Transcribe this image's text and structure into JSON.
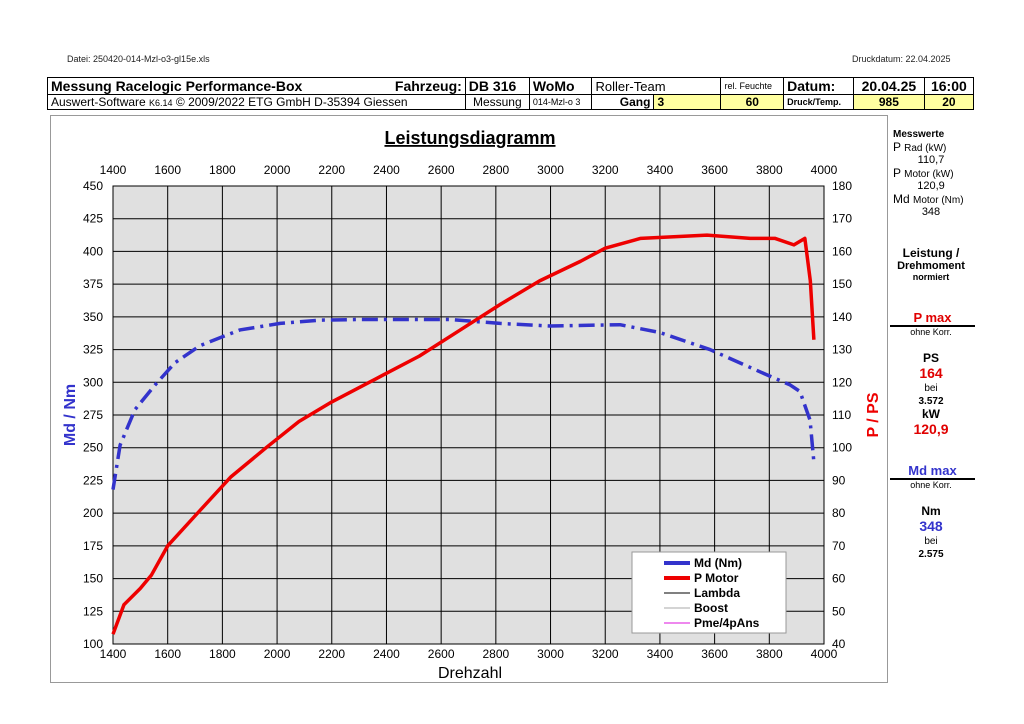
{
  "file_label": "Datei: 250420-014-Mzl-o3-gl15e.xls",
  "print_date": "Druckdatum: 22.04.2025",
  "header": {
    "title": "Messung Racelogic Performance-Box",
    "vehicle_label": "Fahrzeug:",
    "vehicle": "DB 316",
    "type": "WoMo",
    "owner": "Roller-Team",
    "humidity_label": "rel. Feuchte",
    "date_label": "Datum:",
    "date": "20.04.25",
    "time": "16:00",
    "software_a": "Auswert-Software ",
    "software_ver": "K6.14",
    "software_b": " © 2009/2022 ETG GmbH D-35394 Giessen",
    "measurement_label": "Messung",
    "measurement": "014-Mzl-o 3",
    "gear_label": "Gang",
    "gear": "3",
    "humidity": "60",
    "pressure_label": "Druck/Temp.",
    "pressure": "985",
    "temp": "20"
  },
  "side": {
    "measured_title": "Messwerte",
    "p_rad_label_big": "P",
    "p_rad_label": "Rad (kW)",
    "p_rad": "110,7",
    "p_motor_label_big": "P",
    "p_motor_label": "Motor (kW)",
    "p_motor": "120,9",
    "md_label_big": "Md",
    "md_label": "Motor (Nm)",
    "md": "348",
    "norm_title1": "Leistung /",
    "norm_title2": "Drehmoment",
    "norm_sub": "normiert",
    "pmax": "P max",
    "pmax_sub": "ohne Korr.",
    "ps_label": "PS",
    "ps": "164",
    "bei1": "bei",
    "rpm1": "3.572",
    "kw_label": "kW",
    "kw": "120,9",
    "mdmax": "Md max",
    "mdmax_sub": "ohne Korr.",
    "nm_label": "Nm",
    "nm": "348",
    "bei2": "bei",
    "rpm2": "2.575"
  },
  "chart_data": {
    "type": "line",
    "title": "Leistungsdiagramm",
    "xlabel": "Drehzahl",
    "ylabel": "Md / Nm",
    "y2label": "P / PS",
    "xlim": [
      1400,
      4000
    ],
    "ylim": [
      100,
      450
    ],
    "y2lim": [
      40,
      180
    ],
    "grid": true,
    "legend_position": "bottom-right",
    "xticks": [
      1400,
      1600,
      1800,
      2000,
      2200,
      2400,
      2600,
      2800,
      3000,
      3200,
      3400,
      3600,
      3800,
      4000
    ],
    "yticks": [
      100,
      125,
      150,
      175,
      200,
      225,
      250,
      275,
      300,
      325,
      350,
      375,
      400,
      425,
      450
    ],
    "y2ticks": [
      40,
      50,
      60,
      70,
      80,
      90,
      100,
      110,
      120,
      130,
      140,
      150,
      160,
      170,
      180
    ],
    "legend": [
      "Md (Nm)",
      "P Motor",
      "Lambda",
      "Boost",
      "Pme/4pAns"
    ],
    "series": [
      {
        "name": "Md (Nm)",
        "axis": "left",
        "color": "#3333cc",
        "points": [
          [
            1400,
            218
          ],
          [
            1426,
            252
          ],
          [
            1480,
            279
          ],
          [
            1554,
            298
          ],
          [
            1627,
            315
          ],
          [
            1718,
            328
          ],
          [
            1864,
            340
          ],
          [
            2011,
            345
          ],
          [
            2157,
            347.5
          ],
          [
            2303,
            348
          ],
          [
            2632,
            348
          ],
          [
            2815,
            345
          ],
          [
            2998,
            343
          ],
          [
            3254,
            344
          ],
          [
            3400,
            338
          ],
          [
            3583,
            325
          ],
          [
            3766,
            308
          ],
          [
            3876,
            298
          ],
          [
            3912,
            293
          ],
          [
            3949,
            271
          ],
          [
            3963,
            239
          ]
        ]
      },
      {
        "name": "P Motor",
        "axis": "right",
        "color": "#ee0000",
        "points": [
          [
            1400,
            43
          ],
          [
            1440,
            52
          ],
          [
            1500,
            57
          ],
          [
            1540,
            61
          ],
          [
            1600,
            70
          ],
          [
            1720,
            81
          ],
          [
            1830,
            91
          ],
          [
            1960,
            100
          ],
          [
            2080,
            108
          ],
          [
            2200,
            114
          ],
          [
            2360,
            121
          ],
          [
            2520,
            128
          ],
          [
            2670,
            136
          ],
          [
            2820,
            144
          ],
          [
            2960,
            151
          ],
          [
            3110,
            157
          ],
          [
            3200,
            161
          ],
          [
            3330,
            164
          ],
          [
            3572,
            165
          ],
          [
            3730,
            164
          ],
          [
            3820,
            164
          ],
          [
            3890,
            162
          ],
          [
            3930,
            164
          ],
          [
            3950,
            151
          ],
          [
            3963,
            133
          ]
        ]
      }
    ]
  }
}
